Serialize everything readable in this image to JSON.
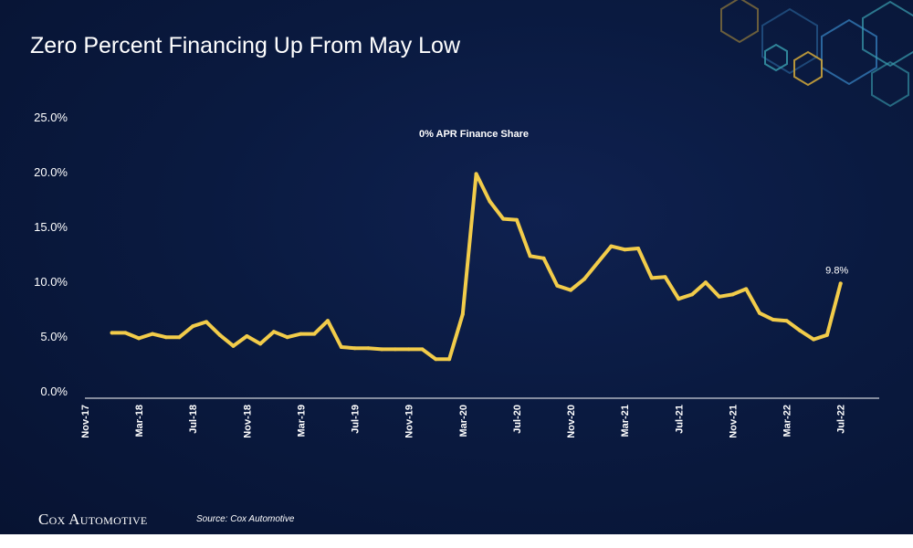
{
  "slide": {
    "title": "Zero Percent Financing Up From May Low",
    "brand": "Cox Automotive",
    "source": "Source: Cox Automotive",
    "colors": {
      "background": "#0a1a40",
      "line": "#f2cc4a",
      "text": "#ffffff",
      "hex_accents": [
        "#2f6fa8",
        "#c9a23a",
        "#3aa0b0"
      ]
    }
  },
  "chart_data": {
    "type": "line",
    "title": "0% APR Finance Share",
    "x_tick_labels": [
      "Nov-17",
      "Mar-18",
      "Jul-18",
      "Nov-18",
      "Mar-19",
      "Jul-19",
      "Nov-19",
      "Mar-20",
      "Jul-20",
      "Nov-20",
      "Mar-21",
      "Jul-21",
      "Nov-21",
      "Mar-22",
      "Jul-22"
    ],
    "y_tick_labels": [
      "0.0%",
      "5.0%",
      "10.0%",
      "15.0%",
      "20.0%",
      "25.0%"
    ],
    "ylim": [
      0,
      25
    ],
    "y_unit": "%",
    "grid": false,
    "series": [
      {
        "name": "0% APR Finance Share",
        "x": [
          "Jan-18",
          "Feb-18",
          "Mar-18",
          "Apr-18",
          "May-18",
          "Jun-18",
          "Jul-18",
          "Aug-18",
          "Sep-18",
          "Oct-18",
          "Nov-18",
          "Dec-18",
          "Jan-19",
          "Feb-19",
          "Mar-19",
          "Apr-19",
          "May-19",
          "Jun-19",
          "Jul-19",
          "Aug-19",
          "Sep-19",
          "Oct-19",
          "Nov-19",
          "Dec-19",
          "Jan-20",
          "Feb-20",
          "Mar-20",
          "Apr-20",
          "May-20",
          "Jun-20",
          "Jul-20",
          "Aug-20",
          "Sep-20",
          "Oct-20",
          "Nov-20",
          "Dec-20",
          "Jan-21",
          "Feb-21",
          "Mar-21",
          "Apr-21",
          "May-21",
          "Jun-21",
          "Jul-21",
          "Aug-21",
          "Sep-21",
          "Oct-21",
          "Nov-21",
          "Dec-21",
          "Jan-22",
          "Feb-22",
          "Mar-22",
          "Apr-22",
          "May-22",
          "Jun-22",
          "Jul-22"
        ],
        "values": [
          5.3,
          5.3,
          4.8,
          5.2,
          4.9,
          4.9,
          5.9,
          6.3,
          5.1,
          4.1,
          5.0,
          4.3,
          5.4,
          4.9,
          5.2,
          5.2,
          6.4,
          4.0,
          3.9,
          3.9,
          3.8,
          3.8,
          3.8,
          3.8,
          2.9,
          2.9,
          7.0,
          19.8,
          17.3,
          15.7,
          15.6,
          12.3,
          12.1,
          9.6,
          9.2,
          10.2,
          11.7,
          13.2,
          12.9,
          13.0,
          10.3,
          10.4,
          8.4,
          8.8,
          9.9,
          8.6,
          8.8,
          9.3,
          7.1,
          6.5,
          6.4,
          5.5,
          4.7,
          5.1,
          9.8
        ]
      }
    ],
    "annotations": [
      {
        "x": "Jul-22",
        "text": "9.8%"
      }
    ]
  }
}
